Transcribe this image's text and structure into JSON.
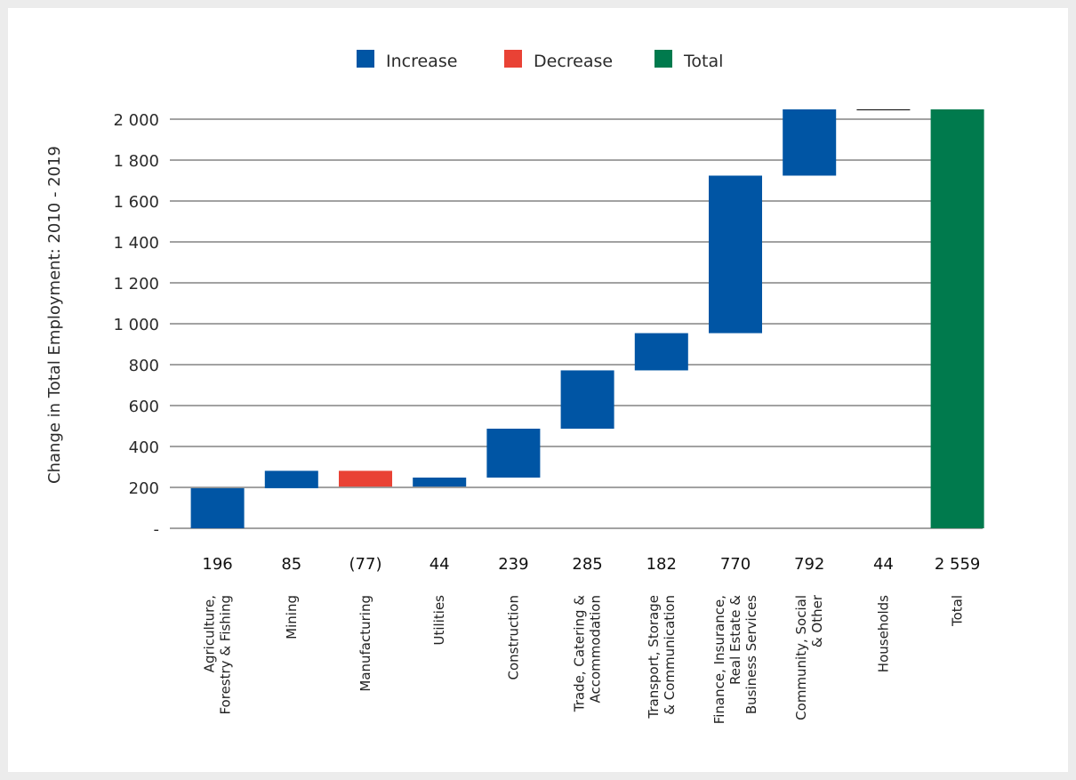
{
  "chart_data": {
    "type": "bar",
    "subtype": "waterfall",
    "ylabel": "Change in Total Employment: 2010 - 2019",
    "ylim": [
      0,
      2000
    ],
    "yticks": [
      {
        "value": 0,
        "label": "-"
      },
      {
        "value": 200,
        "label": "200"
      },
      {
        "value": 400,
        "label": "400"
      },
      {
        "value": 600,
        "label": "600"
      },
      {
        "value": 800,
        "label": "800"
      },
      {
        "value": 1000,
        "label": "1 000"
      },
      {
        "value": 1200,
        "label": "1 200"
      },
      {
        "value": 1400,
        "label": "1 400"
      },
      {
        "value": 1600,
        "label": "1 600"
      },
      {
        "value": 1800,
        "label": "1 800"
      },
      {
        "value": 2000,
        "label": "2 000"
      }
    ],
    "grid": true,
    "legend_position": "top-center",
    "legend": [
      {
        "name": "Increase",
        "color": "#0055a4"
      },
      {
        "name": "Decrease",
        "color": "#e94235"
      },
      {
        "name": "Total",
        "color": "#007a4d"
      }
    ],
    "categories": [
      {
        "name": "Agriculture, Forestry & Fishing",
        "lines": [
          "Agriculture,",
          "Forestry & Fishing"
        ],
        "value": 196,
        "label": "196",
        "kind": "increase"
      },
      {
        "name": "Mining",
        "lines": [
          "Mining"
        ],
        "value": 85,
        "label": "85",
        "kind": "increase"
      },
      {
        "name": "Manufacturing",
        "lines": [
          "Manufacturing"
        ],
        "value": -77,
        "label": "(77)",
        "kind": "decrease"
      },
      {
        "name": "Utilities",
        "lines": [
          "Utilities"
        ],
        "value": 44,
        "label": "44",
        "kind": "increase"
      },
      {
        "name": "Construction",
        "lines": [
          "Construction"
        ],
        "value": 239,
        "label": "239",
        "kind": "increase"
      },
      {
        "name": "Trade, Catering & Accommodation",
        "lines": [
          "Trade, Catering &",
          "Accommodation"
        ],
        "value": 285,
        "label": "285",
        "kind": "increase"
      },
      {
        "name": "Transport, Storage & Communication",
        "lines": [
          "Transport, Storage",
          "& Communication"
        ],
        "value": 182,
        "label": "182",
        "kind": "increase"
      },
      {
        "name": "Finance, Insurance, Real Estate & Business Services",
        "lines": [
          "Finance, Insurance,",
          "Real Estate &",
          "Business Services"
        ],
        "value": 770,
        "label": "770",
        "kind": "increase"
      },
      {
        "name": "Community, Social & Other",
        "lines": [
          "Community, Social",
          "& Other"
        ],
        "value": 792,
        "label": "792",
        "kind": "increase"
      },
      {
        "name": "Households",
        "lines": [
          "Households"
        ],
        "value": 44,
        "label": "44",
        "kind": "increase",
        "color": "#000000"
      },
      {
        "name": "Total",
        "lines": [
          "Total"
        ],
        "value": 2559,
        "label": "2 559",
        "kind": "total"
      }
    ]
  }
}
